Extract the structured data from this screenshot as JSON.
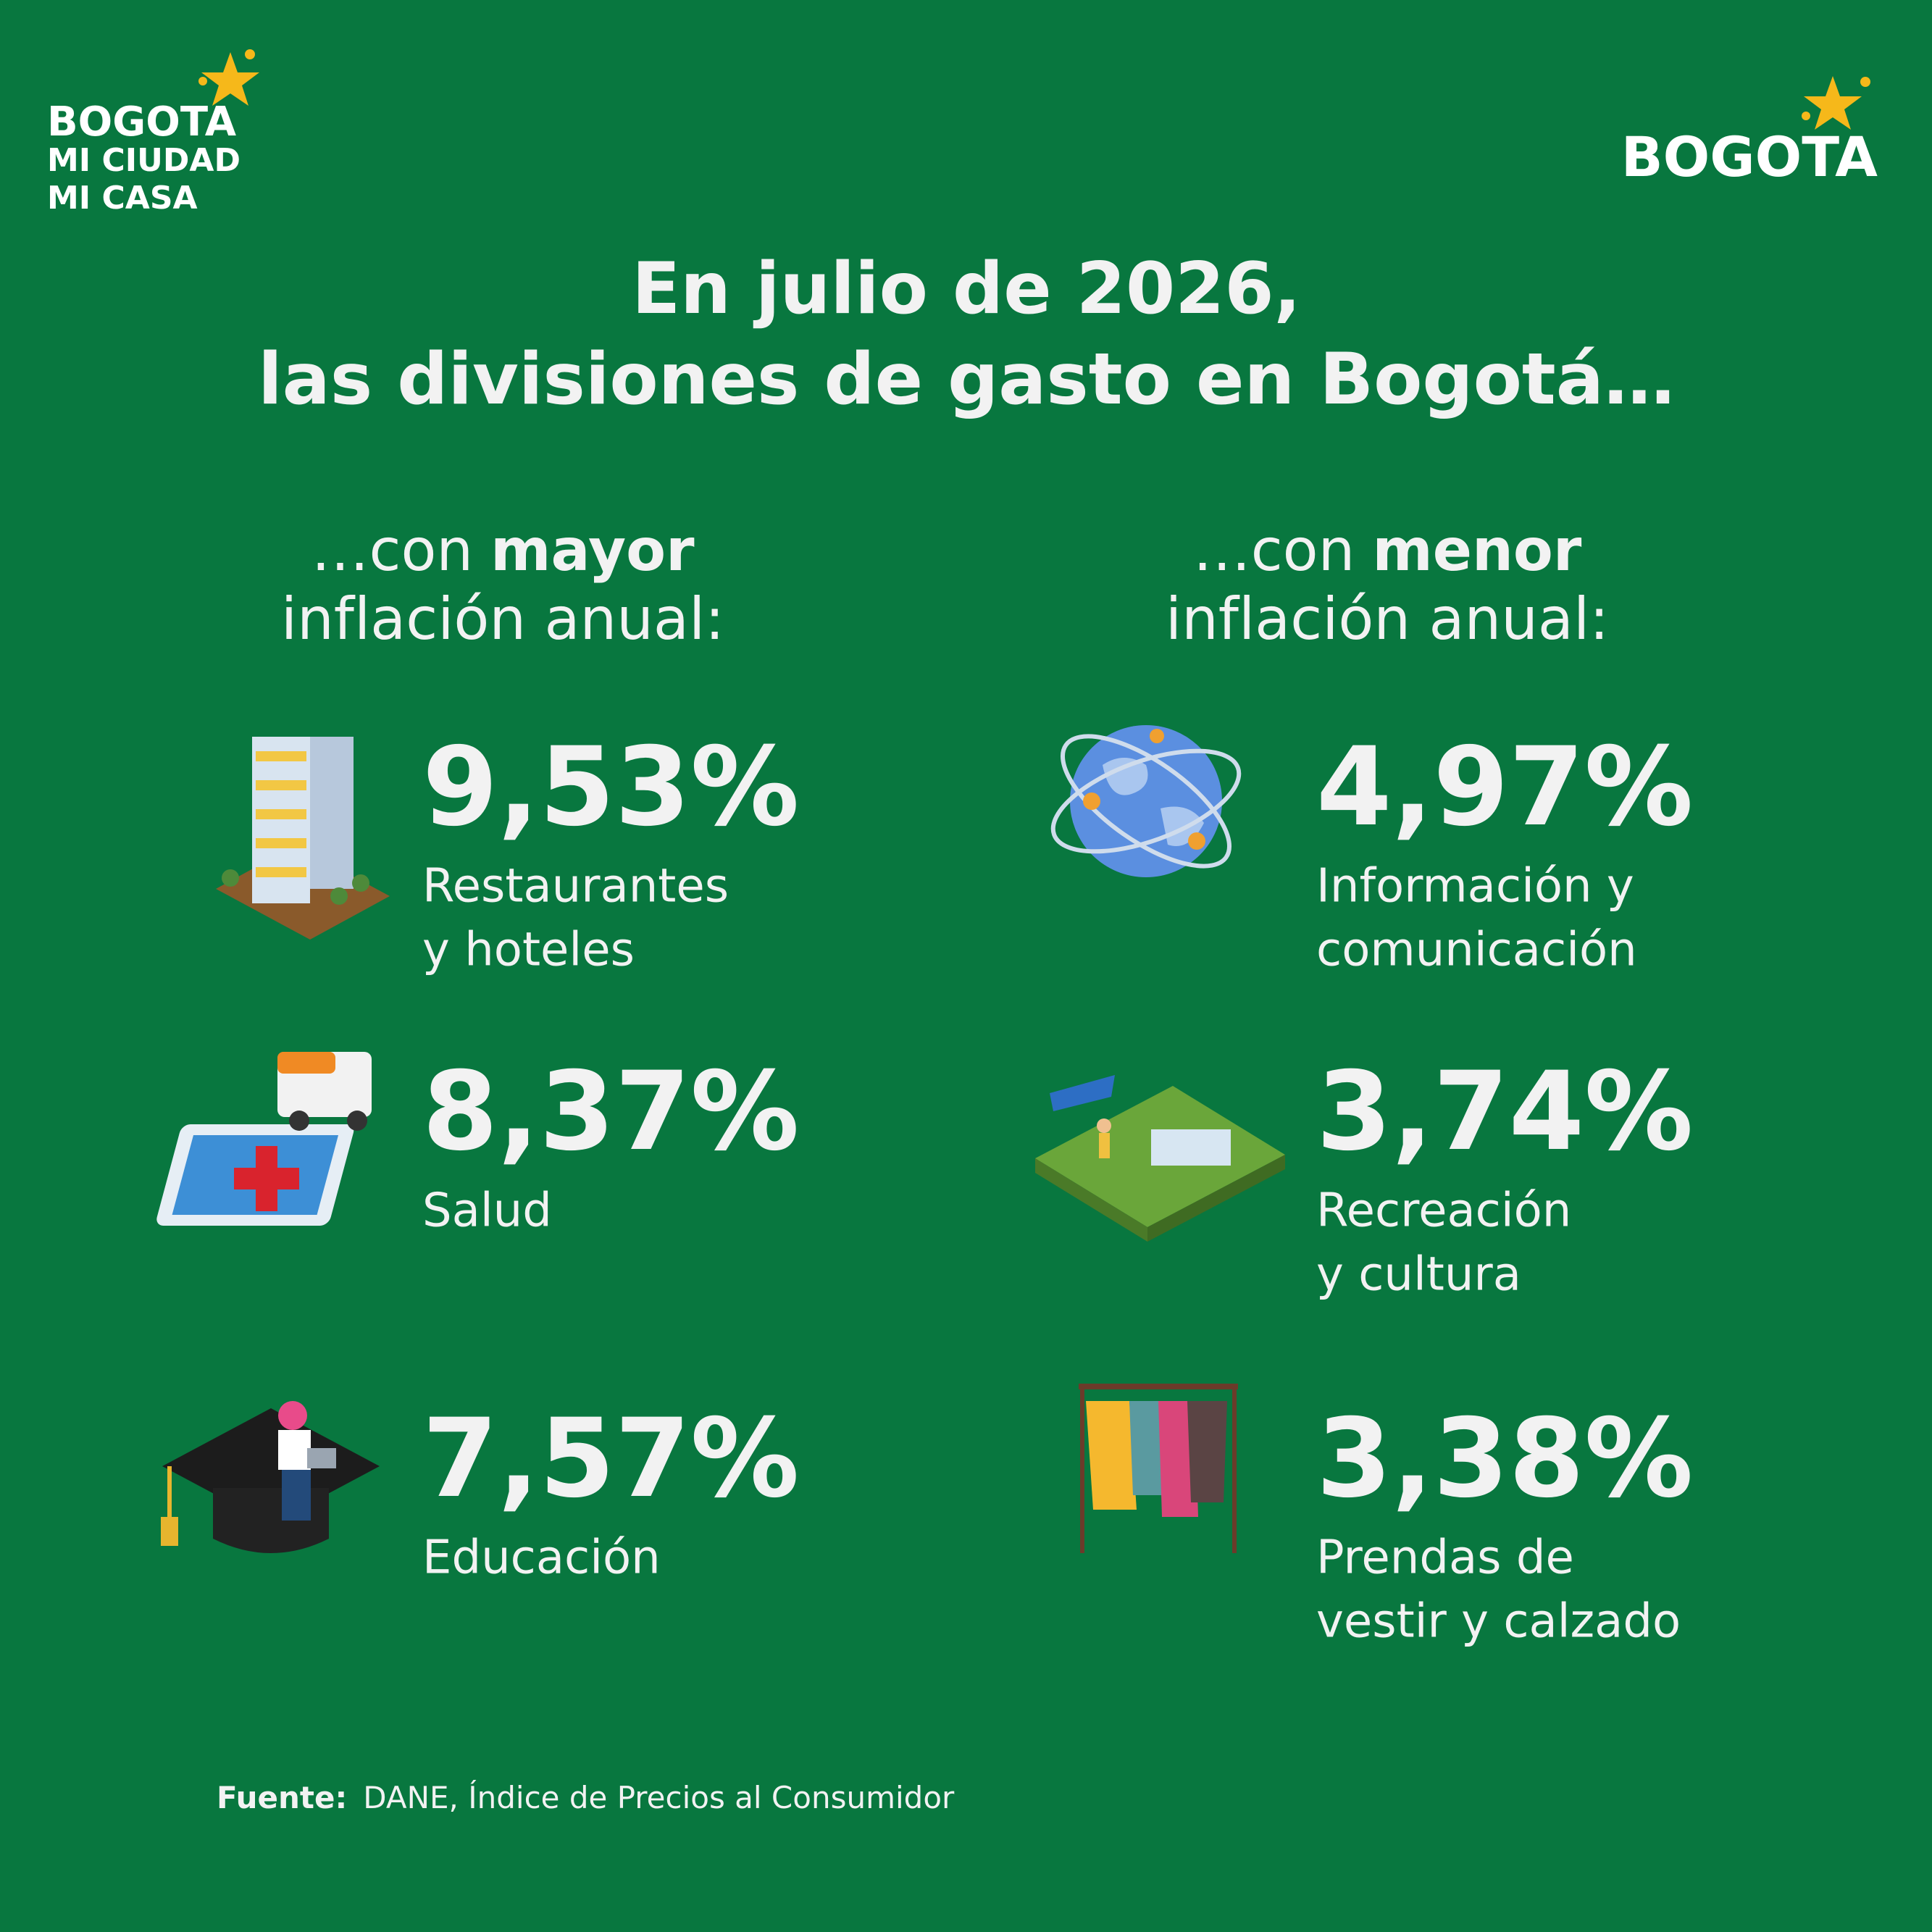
{
  "logos": {
    "left": [
      "BOGOTA",
      "MI CIUDAD",
      "MI CASA"
    ],
    "right": "BOGOTA"
  },
  "title": [
    "En julio de 2026,",
    "las divisiones de gasto en Bogotá…"
  ],
  "columns": [
    {
      "heading": {
        "prefix": "…con",
        "emphasis": "mayor",
        "line2": "inflación anual:"
      },
      "items": [
        {
          "value": "9,53%",
          "label": [
            "Restaurantes",
            "y hoteles"
          ]
        },
        {
          "value": "8,37%",
          "label": [
            "Salud"
          ]
        },
        {
          "value": "7,57%",
          "label": [
            "Educación"
          ]
        }
      ]
    },
    {
      "heading": {
        "prefix": "…con",
        "emphasis": "menor",
        "line2": "inflación anual:"
      },
      "items": [
        {
          "value": "4,97%",
          "label": [
            "Información y",
            "comunicación"
          ]
        },
        {
          "value": "3,74%",
          "label": [
            "Recreación",
            "y cultura"
          ]
        },
        {
          "value": "3,38%",
          "label": [
            "Prendas de",
            "vestir y calzado"
          ]
        }
      ]
    }
  ],
  "source": {
    "label": "Fuente:",
    "text": "DANE, Índice de Precios al Consumidor"
  }
}
